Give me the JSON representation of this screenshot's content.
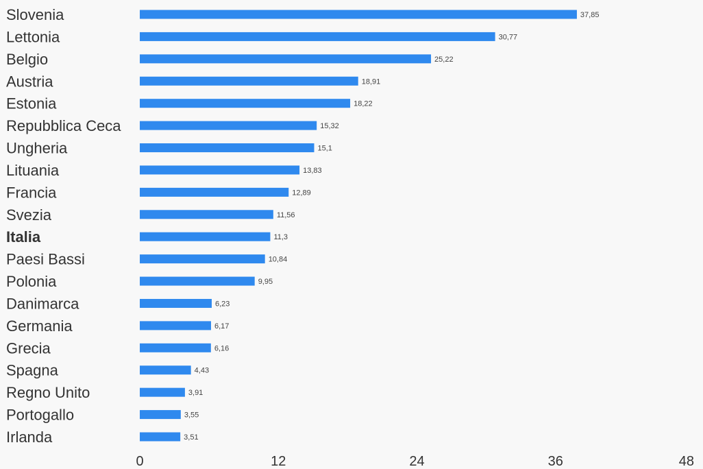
{
  "chart_data": {
    "type": "bar",
    "orientation": "horizontal",
    "categories": [
      "Slovenia",
      "Lettonia",
      "Belgio",
      "Austria",
      "Estonia",
      "Repubblica Ceca",
      "Ungheria",
      "Lituania",
      "Francia",
      "Svezia",
      "Italia",
      "Paesi Bassi",
      "Polonia",
      "Danimarca",
      "Germania",
      "Grecia",
      "Spagna",
      "Regno Unito",
      "Portogallo",
      "Irlanda"
    ],
    "values": [
      37.85,
      30.77,
      25.22,
      18.91,
      18.22,
      15.32,
      15.1,
      13.83,
      12.89,
      11.56,
      11.3,
      10.84,
      9.95,
      6.23,
      6.17,
      6.16,
      4.43,
      3.91,
      3.55,
      3.51
    ],
    "value_labels": [
      "37,85",
      "30,77",
      "25,22",
      "18,91",
      "18,22",
      "15,32",
      "15,1",
      "13,83",
      "12,89",
      "11,56",
      "11,3",
      "10,84",
      "9,95",
      "6,23",
      "6,17",
      "6,16",
      "4,43",
      "3,91",
      "3,55",
      "3,51"
    ],
    "highlighted_category": "Italia",
    "xlim": [
      0,
      48
    ],
    "xticks": [
      "0",
      "12",
      "24",
      "36",
      "48"
    ],
    "title": "",
    "xlabel": "",
    "ylabel": "",
    "grid": false,
    "bar_color": "#2f89ee"
  }
}
